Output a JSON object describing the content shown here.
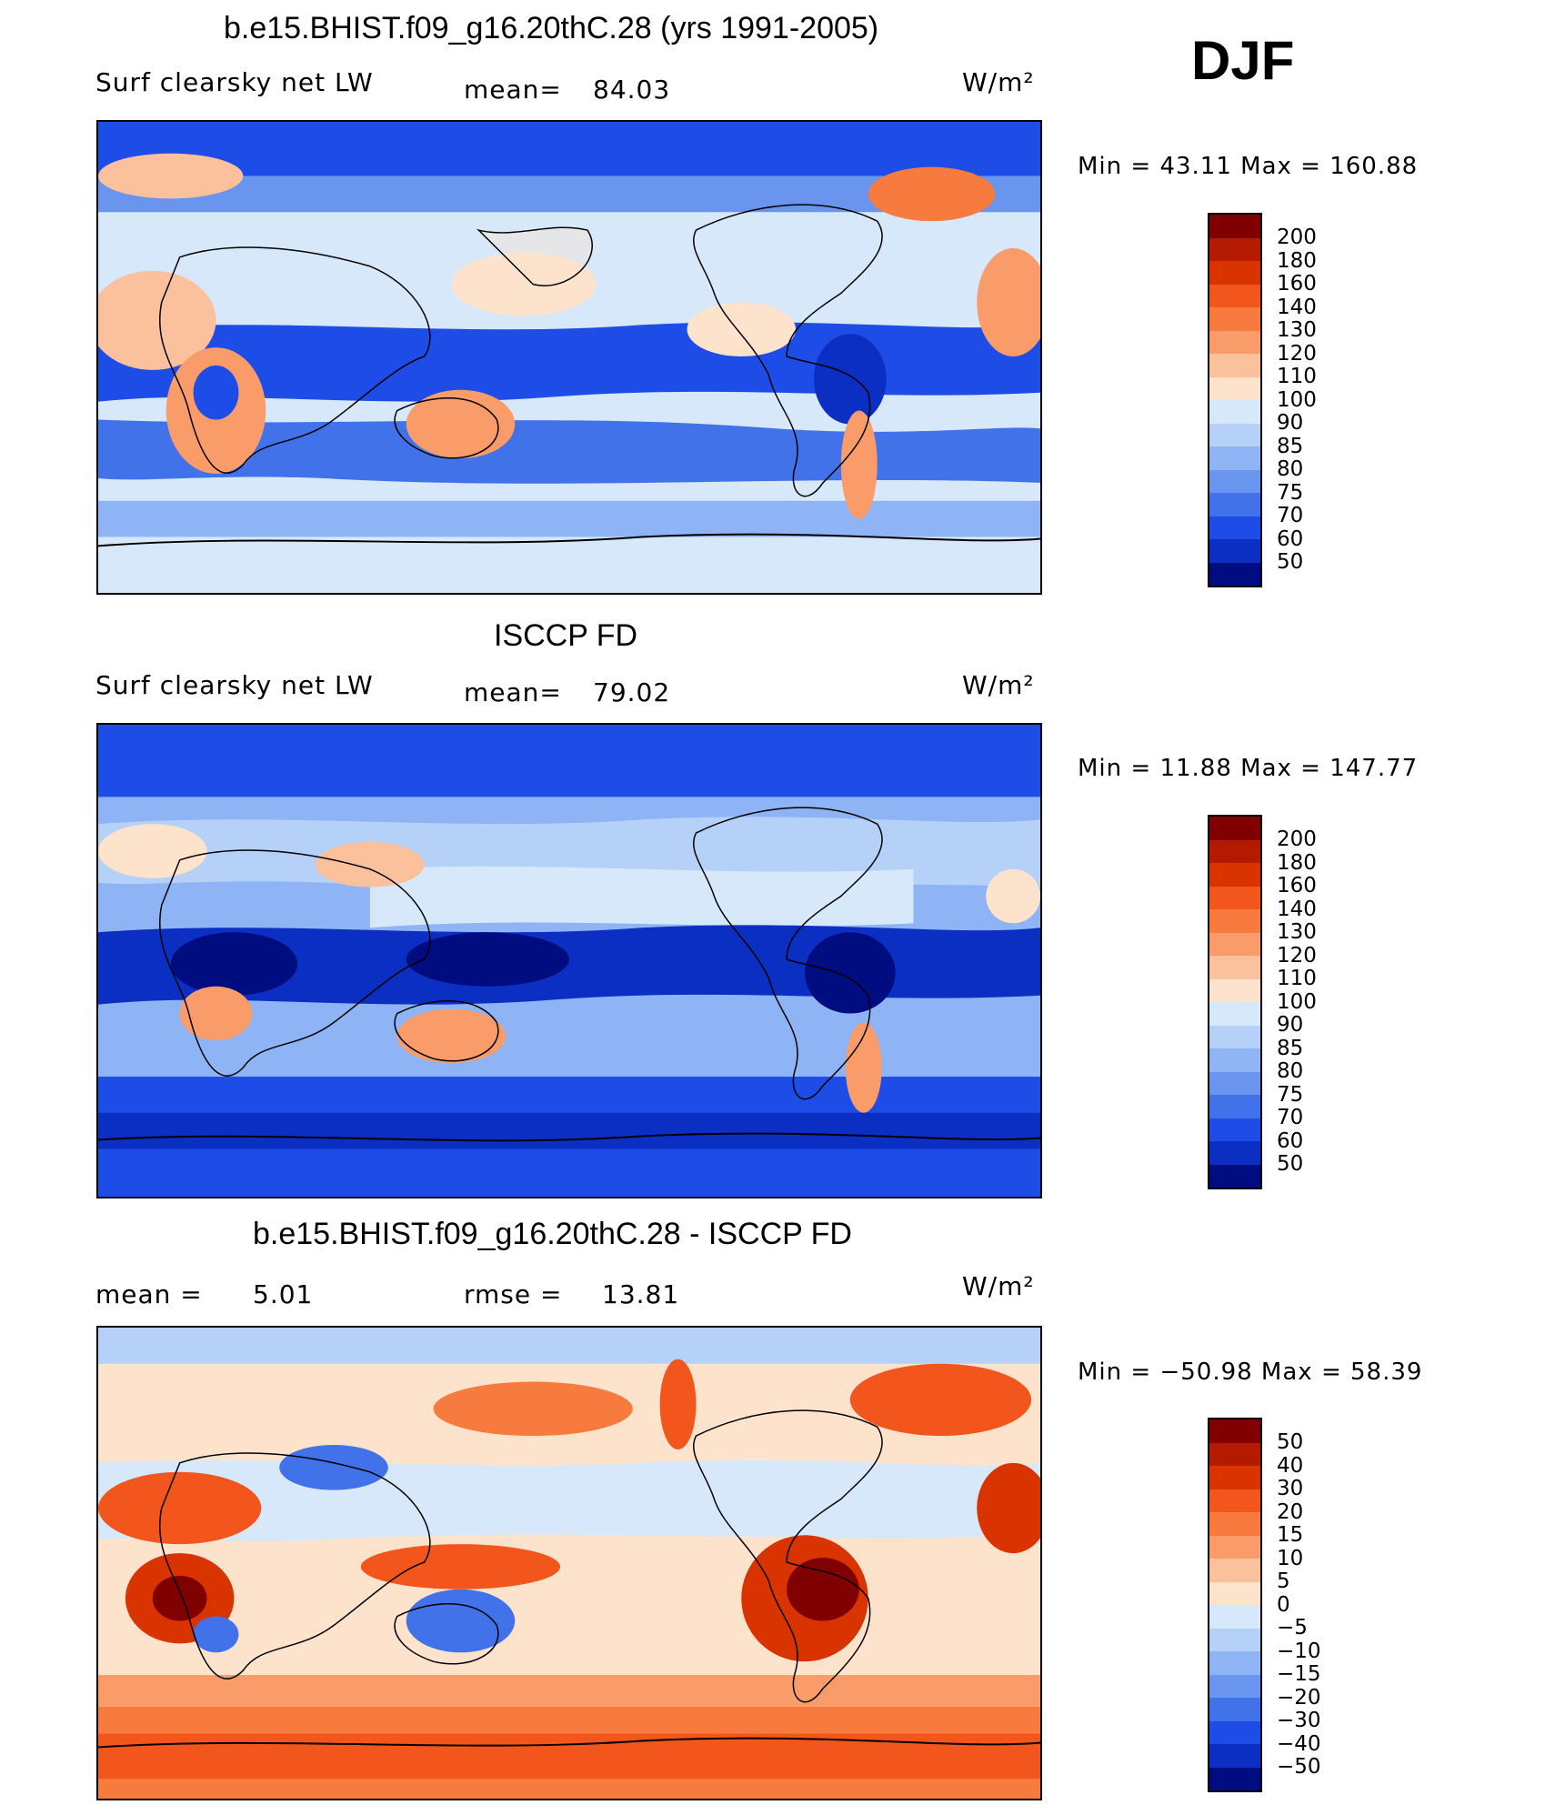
{
  "season": "DJF",
  "unit": "W/m²",
  "panels": [
    {
      "title": "b.e15.BHIST.f09_g16.20thC.28 (yrs 1991-2005)",
      "left_label": "Surf clearsky net LW",
      "center_label": "mean=",
      "center_value": "84.03",
      "min_max": "Min =   43.11  Max  =  160.88",
      "levels": [
        "200",
        "180",
        "160",
        "140",
        "130",
        "120",
        "110",
        "100",
        "90",
        "85",
        "80",
        "75",
        "70",
        "60",
        "50"
      ],
      "colors": [
        "#800000",
        "#b31a00",
        "#d93300",
        "#f2561d",
        "#f77a3f",
        "#fa9c6a",
        "#fbc09c",
        "#fde3cb",
        "#d6e8fa",
        "#b5d1f8",
        "#8fb4f5",
        "#6a95ee",
        "#4272ea",
        "#1d4de6",
        "#0a2fc2",
        "#000d80"
      ]
    },
    {
      "title": "ISCCP FD",
      "left_label": "Surf clearsky net LW",
      "center_label": "mean=",
      "center_value": "79.02",
      "min_max": "Min =   11.88  Max  =  147.77",
      "levels": [
        "200",
        "180",
        "160",
        "140",
        "130",
        "120",
        "110",
        "100",
        "90",
        "85",
        "80",
        "75",
        "70",
        "60",
        "50"
      ],
      "colors": [
        "#800000",
        "#b31a00",
        "#d93300",
        "#f2561d",
        "#f77a3f",
        "#fa9c6a",
        "#fbc09c",
        "#fde3cb",
        "#d6e8fa",
        "#b5d1f8",
        "#8fb4f5",
        "#6a95ee",
        "#4272ea",
        "#1d4de6",
        "#0a2fc2",
        "#000d80"
      ]
    },
    {
      "title": "b.e15.BHIST.f09_g16.20thC.28 - ISCCP FD",
      "left_label": "mean =",
      "left_value": "5.01",
      "center_label": "rmse =",
      "center_value": "13.81",
      "min_max": "Min = −50.98  Max  =   58.39",
      "levels": [
        "50",
        "40",
        "30",
        "20",
        "15",
        "10",
        "5",
        "0",
        "−5",
        "−10",
        "−15",
        "−20",
        "−30",
        "−40",
        "−50"
      ],
      "colors": [
        "#800000",
        "#b31a00",
        "#d93300",
        "#f2561d",
        "#f77a3f",
        "#fa9c6a",
        "#fbc09c",
        "#fde3cb",
        "#d6e8fa",
        "#b5d1f8",
        "#8fb4f5",
        "#6a95ee",
        "#4272ea",
        "#1d4de6",
        "#0a2fc2",
        "#000d80"
      ]
    }
  ]
}
